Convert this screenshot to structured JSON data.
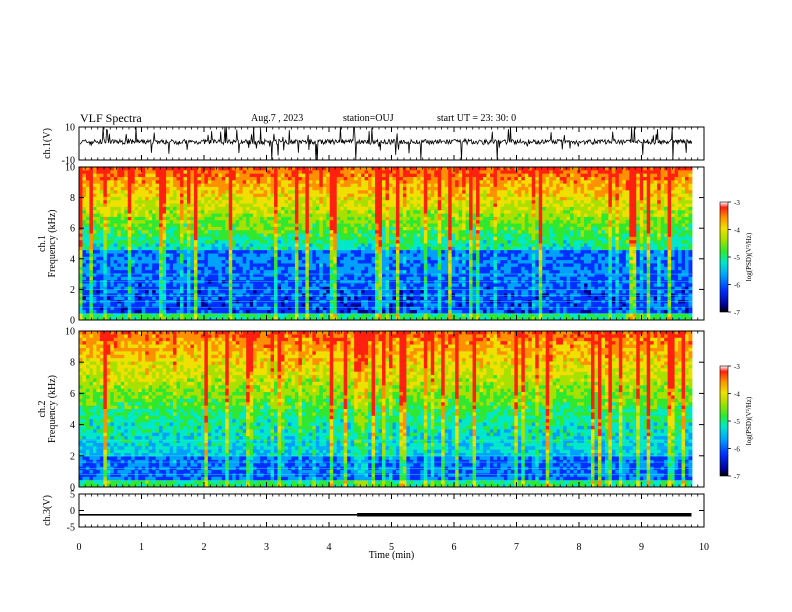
{
  "header": {
    "title": "VLF Spectra",
    "date": "Aug.7 , 2023",
    "station": "station=OUJ",
    "start": "start UT = 23: 30: 0"
  },
  "chart_data": [
    {
      "type": "line",
      "panel": "ch1-waveform",
      "ylabel": "ch.1(V)",
      "ylim": [
        -10,
        10
      ],
      "yticks": [
        "10",
        "-10"
      ],
      "xlim": [
        0,
        10
      ],
      "line_color": "#000000"
    },
    {
      "type": "heatmap",
      "panel": "ch1-spectrogram",
      "ylabel": "ch.1\nFrequency (kHz)",
      "ylabel_lines": [
        "ch.1",
        "Frequency (kHz)"
      ],
      "ylim": [
        0,
        10
      ],
      "yticks": [
        "0",
        "2",
        "4",
        "6",
        "8",
        "10"
      ],
      "xlim": [
        0,
        9.8
      ],
      "colorbar": {
        "label": "log(PSD)(V²/Hz)",
        "range": [
          -7,
          -3
        ],
        "ticks": [
          "-3",
          "-4",
          "-5",
          "-6",
          "-7"
        ]
      }
    },
    {
      "type": "heatmap",
      "panel": "ch2-spectrogram",
      "ylabel": "ch.2\nFrequency (kHz)",
      "ylabel_lines": [
        "ch.2",
        "Frequency (kHz)"
      ],
      "ylim": [
        0,
        10
      ],
      "yticks": [
        "0",
        "2",
        "4",
        "6",
        "8",
        "10"
      ],
      "xlim": [
        0,
        9.8
      ],
      "colorbar": {
        "label": "log(PSD)(V²/Hz)",
        "range": [
          -7,
          -3
        ],
        "ticks": [
          "-3",
          "-4",
          "-5",
          "-6",
          "-7"
        ]
      }
    },
    {
      "type": "line",
      "panel": "ch3-signal",
      "ylabel": "ch.3(V)",
      "ylim": [
        -5,
        5
      ],
      "yticks": [
        "5",
        "0",
        "-5"
      ],
      "xlim": [
        0,
        10
      ],
      "segments": [
        {
          "x": [
            0,
            4.45
          ],
          "y": -1.3,
          "weight": "thin"
        },
        {
          "x": [
            4.45,
            9.8
          ],
          "y": -1.3,
          "weight": "thick"
        }
      ]
    }
  ],
  "x_axis": {
    "label": "Time (min)",
    "ticks": [
      "0",
      "1",
      "2",
      "3",
      "4",
      "5",
      "6",
      "7",
      "8",
      "9",
      "10"
    ],
    "range": [
      0,
      10
    ]
  },
  "colors": {
    "colormap": [
      "#000090",
      "#0030ff",
      "#00a0ff",
      "#00e8c8",
      "#30e830",
      "#a8e000",
      "#f0e000",
      "#ff9000",
      "#ff2010"
    ],
    "axis": "#000000"
  }
}
